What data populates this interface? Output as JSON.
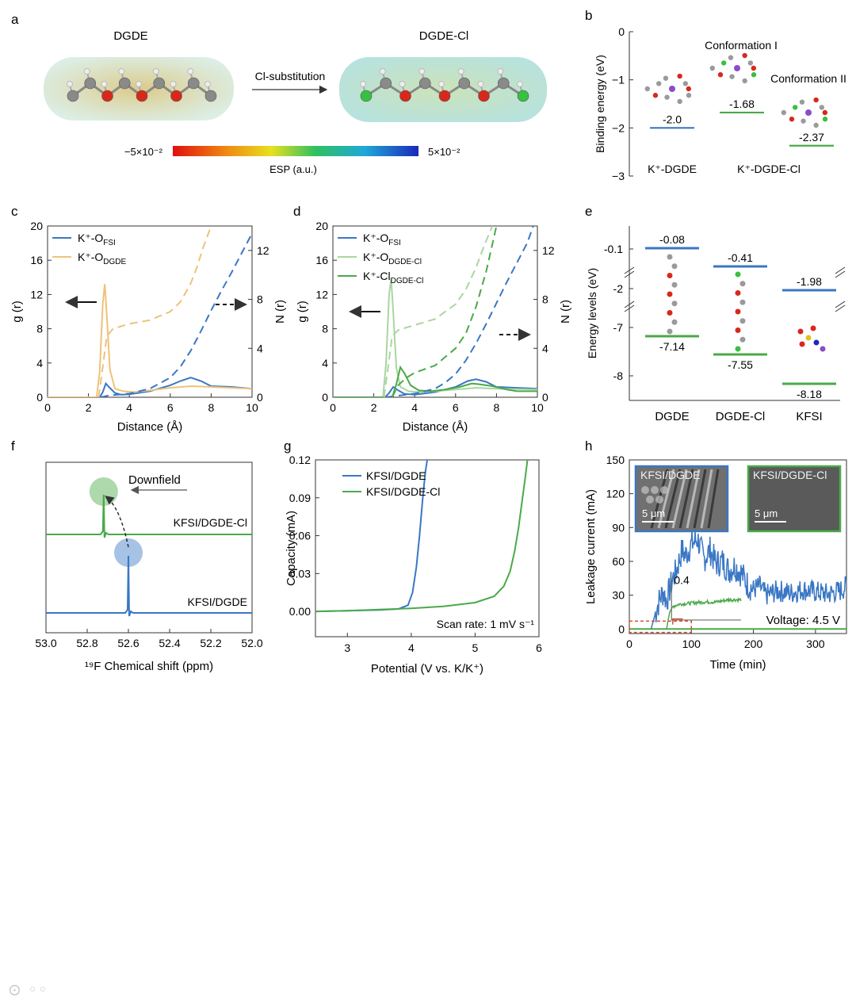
{
  "panels": {
    "a": "a",
    "b": "b",
    "c": "c",
    "d": "d",
    "e": "e",
    "f": "f",
    "g": "g",
    "h": "h"
  },
  "panel_a": {
    "left_title": "DGDE",
    "right_title": "DGDE-Cl",
    "arrow_label": "Cl-substitution",
    "scale_min": "−5×10⁻²",
    "scale_max": "5×10⁻²",
    "scale_label": "ESP (a.u.)"
  },
  "colors": {
    "blue": "#3a77c4",
    "green": "#4aaa48",
    "light_green": "#a9d6a0",
    "orange": "#eec27a",
    "red_dash": "#d9452b",
    "grey": "#6e6e6e"
  },
  "chart_data": [
    {
      "id": "b",
      "type": "energy-levels",
      "ylabel": "Binding energy (eV)",
      "ylim": [
        -3,
        0
      ],
      "yticks": [
        "0",
        "−1",
        "−2",
        "−3"
      ],
      "levels": [
        {
          "name": "K⁺-DGDE",
          "value": -2.0,
          "label": "-2.0",
          "color": "#3a77c4"
        },
        {
          "name": "Conformation I",
          "value": -1.68,
          "label": "-1.68",
          "color": "#4aaa48"
        },
        {
          "name": "Conformation II",
          "value": -2.37,
          "label": "-2.37",
          "color": "#4aaa48"
        }
      ],
      "categories": [
        "K⁺-DGDE",
        "K⁺-DGDE-Cl"
      ],
      "annotations": [
        "Conformation I",
        "Conformation II"
      ]
    },
    {
      "id": "c",
      "type": "line",
      "xlabel": "Distance (Å)",
      "ylabel_left": "g (r)",
      "ylabel_right": "N (r)",
      "xlim": [
        0,
        10
      ],
      "ylim_left": [
        0,
        20
      ],
      "ylim_right": [
        0,
        14
      ],
      "xticks": [
        "0",
        "2",
        "4",
        "6",
        "8",
        "10"
      ],
      "yticks_left": [
        "0",
        "4",
        "8",
        "12",
        "16",
        "20"
      ],
      "yticks_right": [
        "0",
        "4",
        "8",
        "12"
      ],
      "legend": [
        "K⁺-O",
        "FSI",
        "K⁺-O",
        "DGDE"
      ],
      "series": [
        {
          "name": "K+-O FSI g(r)",
          "axis": "left",
          "dash": false,
          "color": "#3a77c4",
          "x": [
            0,
            2.55,
            2.7,
            2.85,
            3.0,
            3.3,
            3.6,
            4.0,
            5.0,
            6.0,
            6.5,
            7.0,
            7.5,
            8.0,
            9.0,
            10.0
          ],
          "y": [
            0,
            0,
            0.6,
            1.6,
            1.2,
            0.5,
            0.3,
            0.35,
            0.7,
            1.4,
            1.9,
            2.3,
            1.9,
            1.3,
            1.2,
            1.0
          ]
        },
        {
          "name": "K+-O DGDE g(r)",
          "axis": "left",
          "dash": false,
          "color": "#eec27a",
          "x": [
            0,
            2.4,
            2.55,
            2.7,
            2.8,
            2.9,
            3.05,
            3.3,
            3.7,
            4.2,
            5.0,
            6.0,
            7.0,
            8.0,
            9.0,
            10.0
          ],
          "y": [
            0,
            0,
            3.0,
            11.0,
            13.2,
            9.5,
            3.2,
            1.0,
            0.7,
            0.6,
            0.8,
            1.1,
            1.3,
            1.2,
            1.1,
            1.0
          ]
        },
        {
          "name": "K+-O FSI N(r)",
          "axis": "right",
          "dash": true,
          "color": "#3a77c4",
          "x": [
            2.6,
            3.0,
            4.0,
            5.0,
            6.0,
            6.5,
            7.0,
            7.5,
            8.0,
            8.5,
            9.0,
            9.5,
            10.0
          ],
          "y": [
            0,
            0.15,
            0.3,
            0.7,
            1.6,
            2.5,
            3.8,
            5.4,
            7.1,
            8.7,
            10.2,
            11.8,
            13.4
          ]
        },
        {
          "name": "K+-O DGDE N(r)",
          "axis": "right",
          "dash": true,
          "color": "#eec27a",
          "x": [
            2.5,
            2.7,
            2.9,
            3.2,
            3.6,
            4.0,
            5.0,
            6.0,
            6.5,
            7.0,
            7.3,
            7.6,
            8.0
          ],
          "y": [
            0,
            2.5,
            5.0,
            5.6,
            5.8,
            6.0,
            6.3,
            7.0,
            7.8,
            9.3,
            10.6,
            12.2,
            14.0
          ]
        }
      ]
    },
    {
      "id": "d",
      "type": "line",
      "xlabel": "Distance (Å)",
      "ylabel_left": "g (r)",
      "ylabel_right": "N (r)",
      "xlim": [
        0,
        10
      ],
      "ylim_left": [
        0,
        20
      ],
      "ylim_right": [
        0,
        14
      ],
      "xticks": [
        "0",
        "2",
        "4",
        "6",
        "8",
        "10"
      ],
      "yticks_left": [
        "0",
        "4",
        "8",
        "12",
        "16",
        "20"
      ],
      "yticks_right": [
        "0",
        "4",
        "8",
        "12"
      ],
      "legend": [
        "K⁺-O",
        "FSI",
        "K⁺-O",
        "DGDE-Cl",
        "K⁺-Cl",
        "DGDE-Cl"
      ],
      "series": [
        {
          "name": "K+-O FSI g(r)",
          "axis": "left",
          "dash": false,
          "color": "#3a77c4",
          "x": [
            0,
            2.55,
            2.75,
            2.95,
            3.2,
            3.5,
            4.0,
            5.0,
            6.0,
            6.6,
            7.0,
            7.5,
            8.0,
            9.0,
            10.0
          ],
          "y": [
            0,
            0,
            0.5,
            1.2,
            0.8,
            0.4,
            0.3,
            0.6,
            1.2,
            1.9,
            2.1,
            1.8,
            1.2,
            1.1,
            1.0
          ]
        },
        {
          "name": "K+-O DGDE-Cl g(r)",
          "axis": "left",
          "dash": false,
          "color": "#a9d6a0",
          "x": [
            0,
            2.45,
            2.6,
            2.75,
            2.85,
            2.95,
            3.1,
            3.3,
            3.7,
            4.2,
            5.0,
            6.0,
            7.0,
            8.0,
            9.0,
            10.0
          ],
          "y": [
            0,
            0,
            4.0,
            12.0,
            13.8,
            10.0,
            3.5,
            1.2,
            0.7,
            0.6,
            0.7,
            0.9,
            1.1,
            1.0,
            0.95,
            0.9
          ]
        },
        {
          "name": "K+-Cl DGDE-Cl g(r)",
          "axis": "left",
          "dash": false,
          "color": "#4aaa48",
          "x": [
            0,
            2.9,
            3.1,
            3.3,
            3.5,
            3.8,
            4.2,
            4.8,
            5.5,
            6.2,
            6.8,
            7.2,
            7.8,
            8.5,
            9.0,
            10.0
          ],
          "y": [
            0,
            0,
            1.5,
            3.5,
            2.8,
            1.4,
            0.8,
            0.7,
            0.9,
            1.2,
            1.6,
            1.5,
            1.3,
            0.9,
            0.7,
            0.7
          ]
        },
        {
          "name": "K+-O FSI N(r)",
          "axis": "right",
          "dash": true,
          "color": "#3a77c4",
          "x": [
            2.6,
            3.0,
            4.0,
            5.0,
            5.5,
            6.0,
            6.5,
            7.0,
            7.5,
            8.0,
            8.5,
            9.0,
            9.5,
            9.8
          ],
          "y": [
            0,
            0.1,
            0.3,
            0.7,
            1.2,
            1.9,
            3.0,
            4.4,
            6.0,
            7.7,
            9.4,
            11.0,
            12.6,
            14.0
          ]
        },
        {
          "name": "K+-O DGDE-Cl N(r)",
          "axis": "right",
          "dash": true,
          "color": "#a9d6a0",
          "x": [
            2.5,
            2.7,
            2.9,
            3.2,
            3.6,
            4.0,
            5.0,
            6.0,
            6.5,
            7.0,
            7.4,
            7.8
          ],
          "y": [
            0,
            2.5,
            5.0,
            5.5,
            5.7,
            5.9,
            6.4,
            7.6,
            8.8,
            10.6,
            12.4,
            14.0
          ]
        },
        {
          "name": "K+-Cl DGDE-Cl N(r)",
          "axis": "right",
          "dash": true,
          "color": "#4aaa48",
          "x": [
            2.9,
            3.2,
            3.6,
            4.0,
            5.0,
            6.0,
            6.5,
            7.0,
            7.5,
            8.0
          ],
          "y": [
            0,
            1.0,
            1.6,
            2.0,
            2.6,
            4.0,
            5.2,
            7.4,
            10.3,
            14.0
          ]
        }
      ]
    },
    {
      "id": "e",
      "type": "energy-levels",
      "ylabel": "Energy levels (eV)",
      "yticks": [
        "-0.1",
        "-2",
        "-7",
        "-8"
      ],
      "categories": [
        "DGDE",
        "DGDE-Cl",
        "KFSI"
      ],
      "lumo": [
        {
          "name": "DGDE",
          "value": -0.08,
          "label": "-0.08"
        },
        {
          "name": "DGDE-Cl",
          "value": -0.41,
          "label": "-0.41"
        },
        {
          "name": "KFSI",
          "value": -1.98,
          "label": "-1.98"
        }
      ],
      "homo": [
        {
          "name": "DGDE",
          "value": -7.14,
          "label": "-7.14"
        },
        {
          "name": "DGDE-Cl",
          "value": -7.55,
          "label": "-7.55"
        },
        {
          "name": "KFSI",
          "value": -8.18,
          "label": "-8.18"
        }
      ]
    },
    {
      "id": "f",
      "type": "line",
      "xlabel": "¹⁹F Chemical shift (ppm)",
      "xlim": [
        53.0,
        52.0
      ],
      "xticks": [
        "53.0",
        "52.8",
        "52.6",
        "52.4",
        "52.2",
        "52.0"
      ],
      "annotation": "Downfield",
      "series": [
        {
          "name": "KFSI/DGDE-Cl",
          "color": "#4aaa48",
          "peak_ppm": 52.72,
          "peak_height": 0.32
        },
        {
          "name": "KFSI/DGDE",
          "color": "#3a77c4",
          "peak_ppm": 52.6,
          "peak_height": 0.56
        }
      ]
    },
    {
      "id": "g",
      "type": "line",
      "xlabel": "Potential (V vs. K/K⁺)",
      "ylabel": "Capacity (mA)",
      "xlim": [
        2.5,
        6.0
      ],
      "ylim": [
        -0.02,
        0.12
      ],
      "xticks": [
        "3",
        "4",
        "5",
        "6"
      ],
      "yticks": [
        "0.00",
        "0.03",
        "0.06",
        "0.09",
        "0.12"
      ],
      "annotation": "Scan rate: 1 mV s⁻¹",
      "series": [
        {
          "name": "KFSI/DGDE",
          "color": "#3a77c4",
          "x": [
            2.5,
            3.0,
            3.5,
            3.8,
            3.95,
            4.02,
            4.08,
            4.13,
            4.18,
            4.22,
            4.25
          ],
          "y": [
            0.0,
            0.0005,
            0.0012,
            0.002,
            0.005,
            0.015,
            0.035,
            0.06,
            0.09,
            0.11,
            0.12
          ]
        },
        {
          "name": "KFSI/DGDE-Cl",
          "color": "#4aaa48",
          "x": [
            2.5,
            3.0,
            3.5,
            4.0,
            4.5,
            5.0,
            5.3,
            5.45,
            5.55,
            5.62,
            5.68,
            5.73,
            5.78,
            5.82
          ],
          "y": [
            0.0,
            0.0005,
            0.0015,
            0.0025,
            0.004,
            0.007,
            0.012,
            0.02,
            0.032,
            0.048,
            0.066,
            0.085,
            0.104,
            0.12
          ]
        }
      ]
    },
    {
      "id": "h",
      "type": "line",
      "xlabel": "Time (min)",
      "ylabel": "Leakage current (mA)",
      "xlim": [
        0,
        350
      ],
      "ylim": [
        -4,
        150
      ],
      "xticks": [
        "0",
        "100",
        "200",
        "300"
      ],
      "yticks": [
        "0",
        "30",
        "60",
        "90",
        "120",
        "150"
      ],
      "annotations": [
        "Voltage: 4.5 V",
        "0.4"
      ],
      "insets": [
        "KFSI/DGDE",
        "5 μm",
        "KFSI/DGDE-Cl",
        "5 μm"
      ],
      "series": [
        {
          "name": "KFSI/DGDE",
          "color": "#3a77c4",
          "x": [
            0,
            35,
            40,
            45,
            50,
            55,
            60,
            65,
            70,
            75,
            80,
            85,
            90,
            100,
            110,
            120,
            130,
            140,
            150,
            160,
            170,
            180,
            190,
            200,
            210,
            220,
            240,
            260,
            280,
            300,
            320,
            340,
            350
          ],
          "y": [
            0,
            0,
            10,
            20,
            28,
            33,
            25,
            35,
            45,
            50,
            60,
            70,
            65,
            75,
            80,
            62,
            70,
            58,
            60,
            52,
            56,
            50,
            40,
            35,
            38,
            30,
            34,
            32,
            35,
            33,
            31,
            34,
            38
          ]
        },
        {
          "name": "KFSI/DGDE-Cl",
          "color": "#4aaa48",
          "x": [
            0,
            60,
            65,
            70,
            80,
            100,
            120,
            140,
            160,
            180,
            350
          ],
          "y": [
            0,
            0,
            15,
            20,
            22,
            23,
            24,
            24,
            26,
            26,
            0
          ]
        }
      ]
    }
  ]
}
